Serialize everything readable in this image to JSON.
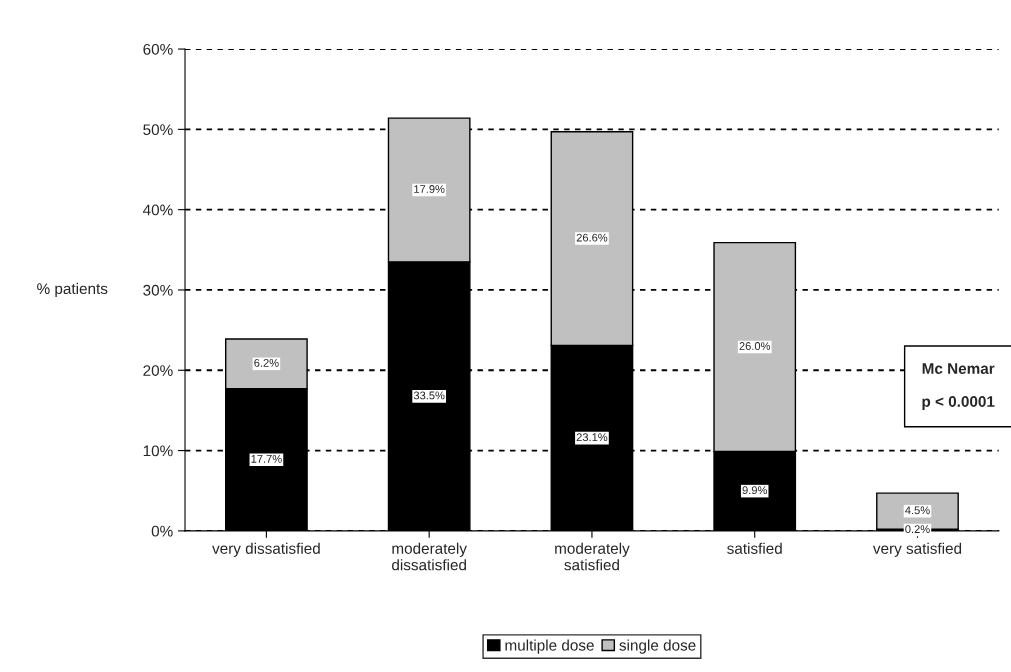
{
  "chart_data": {
    "type": "bar",
    "stacked": true,
    "ylabel": "% patients",
    "categories": [
      "very dissatisfied",
      "moderately\ndissatisfied",
      "moderately\nsatisfied",
      "satisfied",
      "very satisfied"
    ],
    "series": [
      {
        "name": "multiple dose",
        "color": "#000000",
        "values": [
          17.7,
          33.5,
          23.1,
          9.9,
          0.2
        ],
        "value_labels": [
          "17.7%",
          "33.5%",
          "23.1%",
          "9.9%",
          "0.2%"
        ]
      },
      {
        "name": "single dose",
        "color": "#c0c0c0",
        "values": [
          6.2,
          17.9,
          26.6,
          26.0,
          4.5
        ],
        "value_labels": [
          "6.2%",
          "17.9%",
          "26.6%",
          "26.0%",
          "4.5%"
        ]
      }
    ],
    "ylim": [
      0,
      60
    ],
    "yticks": [
      {
        "value": 0,
        "label": "0%"
      },
      {
        "value": 10,
        "label": "10%"
      },
      {
        "value": 20,
        "label": "20%"
      },
      {
        "value": 30,
        "label": "30%"
      },
      {
        "value": 40,
        "label": "40%"
      },
      {
        "value": 50,
        "label": "50%"
      },
      {
        "value": 60,
        "label": "60%"
      }
    ],
    "grid": "y",
    "legend": "bottom",
    "annotations": [
      "Mc Nemar\n\np < 0.0001"
    ]
  }
}
